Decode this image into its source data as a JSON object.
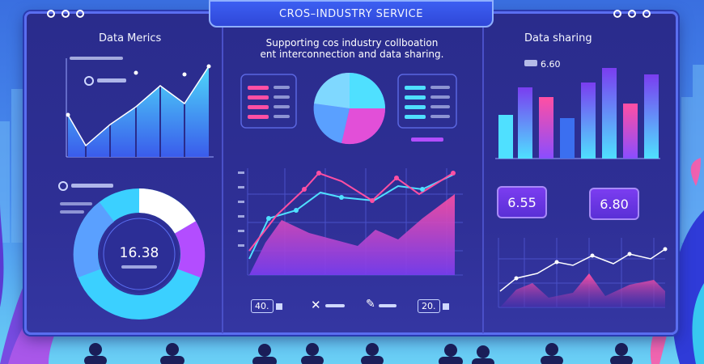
{
  "header": {
    "title": "CROS–INDUSTRY SERVICE"
  },
  "left_panel": {
    "heading": "Data Merics",
    "donut_value": "16.38"
  },
  "center_panel": {
    "subheading_line1": "Supporting cos industry collboation",
    "subheading_line2": "ent interconnection and data sharing."
  },
  "right_panel": {
    "heading": "Data sharing",
    "bar_label": "6.60",
    "kpi_1": "6.55",
    "kpi_2": "6.80"
  },
  "footer": {
    "chip_1": "40.",
    "chip_2": "20."
  },
  "colors": {
    "accent_pink": "#ff4fa3",
    "accent_cyan": "#4fe0ff",
    "accent_purple": "#8a4dff",
    "board": "#2e2f95"
  }
}
